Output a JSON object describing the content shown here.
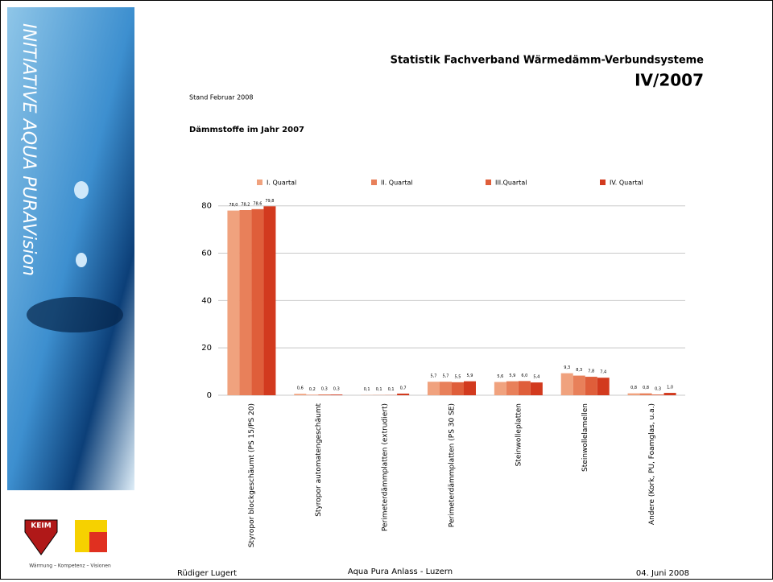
{
  "slide": {
    "sidebar_text": "INITIATIVE AQUA PURAVision",
    "keim_logo": "KEIM",
    "logo_tagline": "Wärmung – Kompetenz – Visionen",
    "footer": {
      "author": "Rüdiger Lugert",
      "event": "Aqua Pura Anlass - Luzern",
      "date": "04. Juni 2008"
    }
  },
  "chart_data": {
    "type": "bar",
    "title": "Statistik Fachverband Wärmedämm-Verbundsysteme",
    "subtitle": "IV/2007",
    "annotations": [
      "Stand Februar 2008",
      "Dämmstoffe im Jahr 2007"
    ],
    "categories": [
      "Styropor blockgeschäumt (PS 15/PS 20)",
      "Styropor automatengeschäumt",
      "Perimeterdämmplatten (extrudiert)",
      "Perimeterdämmplatten (PS 30 SE)",
      "Steinwolleplatten",
      "Steinwollelamellen",
      "Andere (Kork, PU, Foamglas, u.a.)"
    ],
    "series": [
      {
        "name": "I. Quartal",
        "color": "#f0a27e",
        "values": [
          78.0,
          0.6,
          0.1,
          5.7,
          5.6,
          9.3,
          0.8
        ],
        "value_labels": [
          "78,0",
          "0,6",
          "0,1",
          "5,7",
          "5,6",
          "9,3",
          "0,8"
        ]
      },
      {
        "name": "II. Quartal",
        "color": "#e8805a",
        "values": [
          78.2,
          0.2,
          0.1,
          5.7,
          5.9,
          8.3,
          0.8
        ],
        "value_labels": [
          "78,2",
          "0,2",
          "0,1",
          "5,7",
          "5,9",
          "8,3",
          "0,8"
        ]
      },
      {
        "name": "III.Quartal",
        "color": "#df5e3a",
        "values": [
          78.6,
          0.3,
          0.1,
          5.5,
          6.0,
          7.8,
          0.3
        ],
        "value_labels": [
          "78,6",
          "0,3",
          "0,1",
          "5,5",
          "6,0",
          "7,8",
          "0,3"
        ]
      },
      {
        "name": "IV. Quartal",
        "color": "#d23a1e",
        "values": [
          79.8,
          0.3,
          0.7,
          5.9,
          5.4,
          7.4,
          1.0
        ],
        "value_labels": [
          "79,8",
          "0,3",
          "0,7",
          "5,9",
          "5,4",
          "7,4",
          "1,0"
        ]
      }
    ],
    "ylim": [
      0,
      85
    ],
    "yticks": [
      0,
      20,
      40,
      60,
      80
    ],
    "grid": true,
    "legend": "top"
  }
}
